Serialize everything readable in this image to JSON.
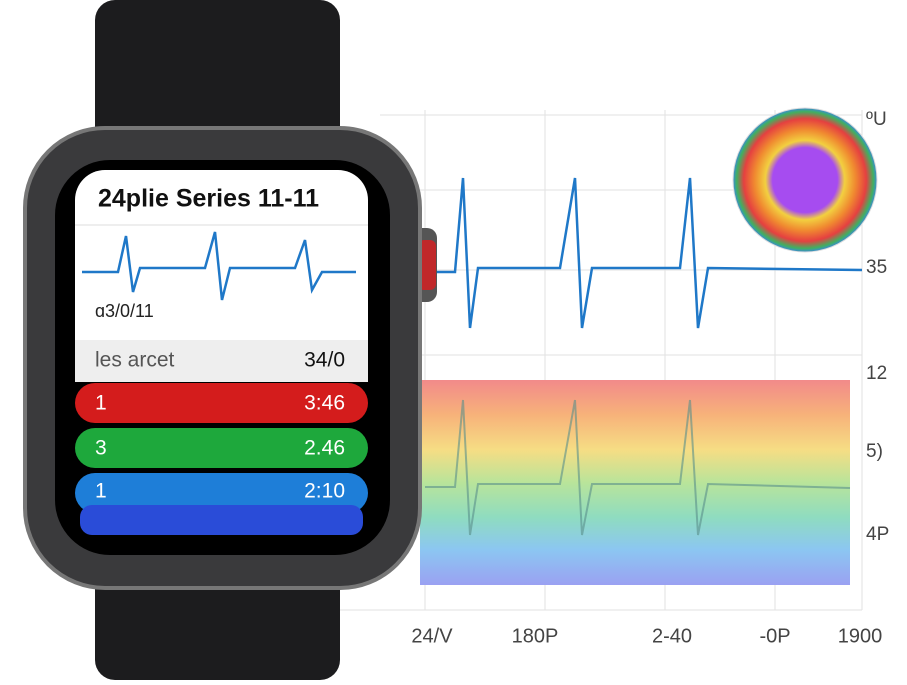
{
  "watch": {
    "title": "24plie Series 11-11",
    "date": "ɑ3/0/11",
    "summary": {
      "label": "les arcet",
      "value": "34/0"
    },
    "rows": [
      {
        "label": "1",
        "value": "3:46"
      },
      {
        "label": "3",
        "value": "2.46"
      },
      {
        "label": "1",
        "value": "2:10"
      }
    ]
  },
  "background_chart": {
    "right_labels": [
      "ºU",
      "35",
      "12",
      "5)",
      "4P"
    ],
    "bottom_labels": [
      "24/V",
      "180P",
      "2-40",
      "-0P",
      "1900"
    ]
  }
}
